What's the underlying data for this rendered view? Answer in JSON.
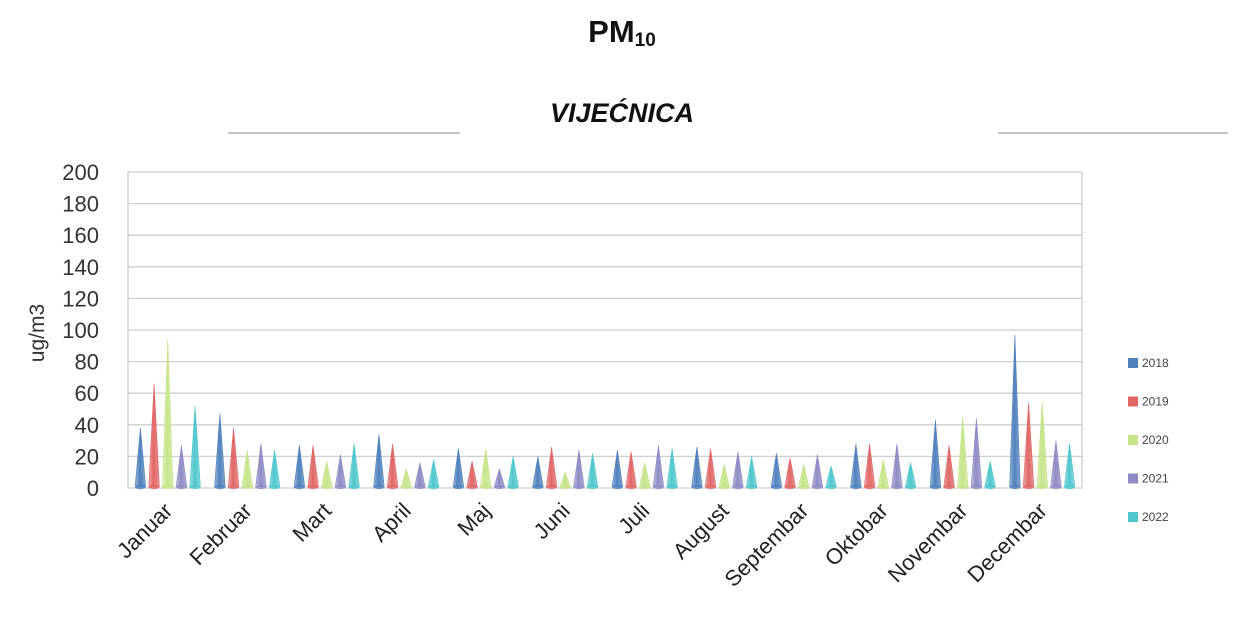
{
  "chart_data": {
    "type": "bar",
    "title": "PM",
    "title_subscript": "10",
    "subtitle": "VIJEĆNICA",
    "ylabel": "ug/m3",
    "xlabel": "",
    "ylim": [
      0,
      200
    ],
    "yticks": [
      0,
      20,
      40,
      60,
      80,
      100,
      120,
      140,
      160,
      180,
      200
    ],
    "grid": true,
    "legend_position": "right",
    "categories": [
      "Januar",
      "Februar",
      "Mart",
      "April",
      "Maj",
      "Juni",
      "Juli",
      "August",
      "Septembar",
      "Oktobar",
      "Novembar",
      "Decembar"
    ],
    "series": [
      {
        "name": "2018",
        "color": "#4f81bd",
        "values": [
          38,
          47,
          27,
          34,
          25,
          20,
          24,
          26,
          22,
          28,
          43,
          97
        ]
      },
      {
        "name": "2019",
        "color": "#e06666",
        "values": [
          66,
          38,
          27,
          28,
          17,
          26,
          23,
          25,
          19,
          28,
          27,
          54
        ]
      },
      {
        "name": "2020",
        "color": "#c6e58a",
        "values": [
          94,
          24,
          17,
          12,
          25,
          10,
          16,
          15,
          15,
          18,
          45,
          55
        ]
      },
      {
        "name": "2021",
        "color": "#8e8bc4",
        "values": [
          27,
          28,
          21,
          16,
          12,
          24,
          27,
          23,
          21,
          28,
          44,
          30
        ]
      },
      {
        "name": "2022",
        "color": "#4ec7cc",
        "values": [
          52,
          24,
          28,
          18,
          20,
          22,
          25,
          20,
          14,
          16,
          17,
          28
        ]
      }
    ]
  }
}
